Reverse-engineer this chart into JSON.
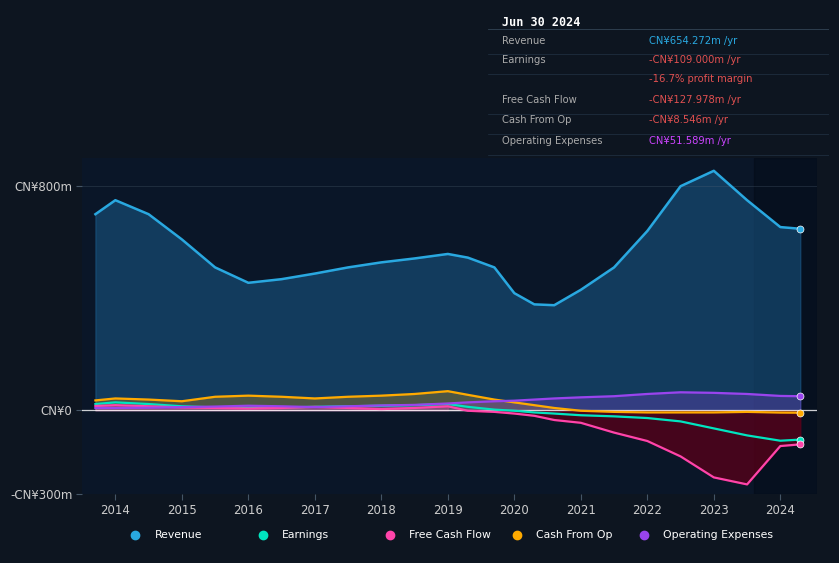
{
  "bg_color": "#0d1520",
  "chart_bg": "#0a1628",
  "chart_bg_dark": "#061020",
  "title_box_bg": "#050a10",
  "title": "Jun 30 2024",
  "info_rows": [
    {
      "label": "Revenue",
      "value": "CN¥654.272m /yr",
      "value_color": "#29a8e0"
    },
    {
      "label": "Earnings",
      "value": "-CN¥109.000m /yr",
      "value_color": "#e05050"
    },
    {
      "label": "",
      "value": "-16.7% profit margin",
      "value_color": "#e05050"
    },
    {
      "label": "Free Cash Flow",
      "value": "-CN¥127.978m /yr",
      "value_color": "#e05050"
    },
    {
      "label": "Cash From Op",
      "value": "-CN¥8.546m /yr",
      "value_color": "#e05050"
    },
    {
      "label": "Operating Expenses",
      "value": "CN¥51.589m /yr",
      "value_color": "#cc44ff"
    }
  ],
  "years": [
    2013.7,
    2014.0,
    2014.5,
    2015.0,
    2015.5,
    2016.0,
    2016.5,
    2017.0,
    2017.5,
    2018.0,
    2018.5,
    2019.0,
    2019.3,
    2019.7,
    2020.0,
    2020.3,
    2020.6,
    2021.0,
    2021.5,
    2022.0,
    2022.5,
    2023.0,
    2023.5,
    2024.0,
    2024.3
  ],
  "revenue": [
    700,
    750,
    700,
    610,
    510,
    455,
    468,
    488,
    510,
    528,
    542,
    558,
    545,
    510,
    418,
    378,
    375,
    430,
    510,
    640,
    800,
    855,
    750,
    654,
    648
  ],
  "earnings": [
    22,
    28,
    22,
    14,
    10,
    8,
    10,
    12,
    14,
    16,
    18,
    22,
    12,
    2,
    -2,
    -8,
    -12,
    -18,
    -22,
    -28,
    -40,
    -65,
    -90,
    -109,
    -105
  ],
  "fcf": [
    15,
    18,
    14,
    10,
    8,
    6,
    8,
    12,
    8,
    4,
    8,
    14,
    -2,
    -6,
    -12,
    -20,
    -35,
    -45,
    -80,
    -110,
    -165,
    -240,
    -265,
    -128,
    -122
  ],
  "cash_from_op": [
    35,
    42,
    38,
    32,
    48,
    52,
    48,
    42,
    48,
    52,
    58,
    68,
    55,
    38,
    28,
    18,
    8,
    -2,
    -6,
    -8,
    -8,
    -8,
    -6,
    -8.5,
    -9
  ],
  "op_expenses": [
    8,
    8,
    9,
    11,
    13,
    16,
    14,
    11,
    14,
    17,
    19,
    24,
    28,
    32,
    34,
    38,
    42,
    46,
    50,
    58,
    64,
    62,
    58,
    51,
    50
  ],
  "revenue_color": "#29a8e0",
  "earnings_color": "#00e5c0",
  "fcf_color": "#ff44aa",
  "cash_from_op_color": "#ffaa00",
  "op_expenses_color": "#9944ee",
  "revenue_fill": "#1a5a8a",
  "fcf_fill_neg": "#5a0018",
  "earnings_fill_pos": "#004444",
  "ylim_min": -300,
  "ylim_max": 900,
  "ytick_vals": [
    -300,
    0,
    800
  ],
  "ytick_labels": [
    "-CN¥300m",
    "CN¥0",
    "CN¥800m"
  ],
  "xlim_min": 2013.5,
  "xlim_max": 2024.55,
  "xticks": [
    2014,
    2015,
    2016,
    2017,
    2018,
    2019,
    2020,
    2021,
    2022,
    2023,
    2024
  ],
  "legend": [
    {
      "label": "Revenue",
      "color": "#29a8e0"
    },
    {
      "label": "Earnings",
      "color": "#00e5c0"
    },
    {
      "label": "Free Cash Flow",
      "color": "#ff44aa"
    },
    {
      "label": "Cash From Op",
      "color": "#ffaa00"
    },
    {
      "label": "Operating Expenses",
      "color": "#9944ee"
    }
  ]
}
